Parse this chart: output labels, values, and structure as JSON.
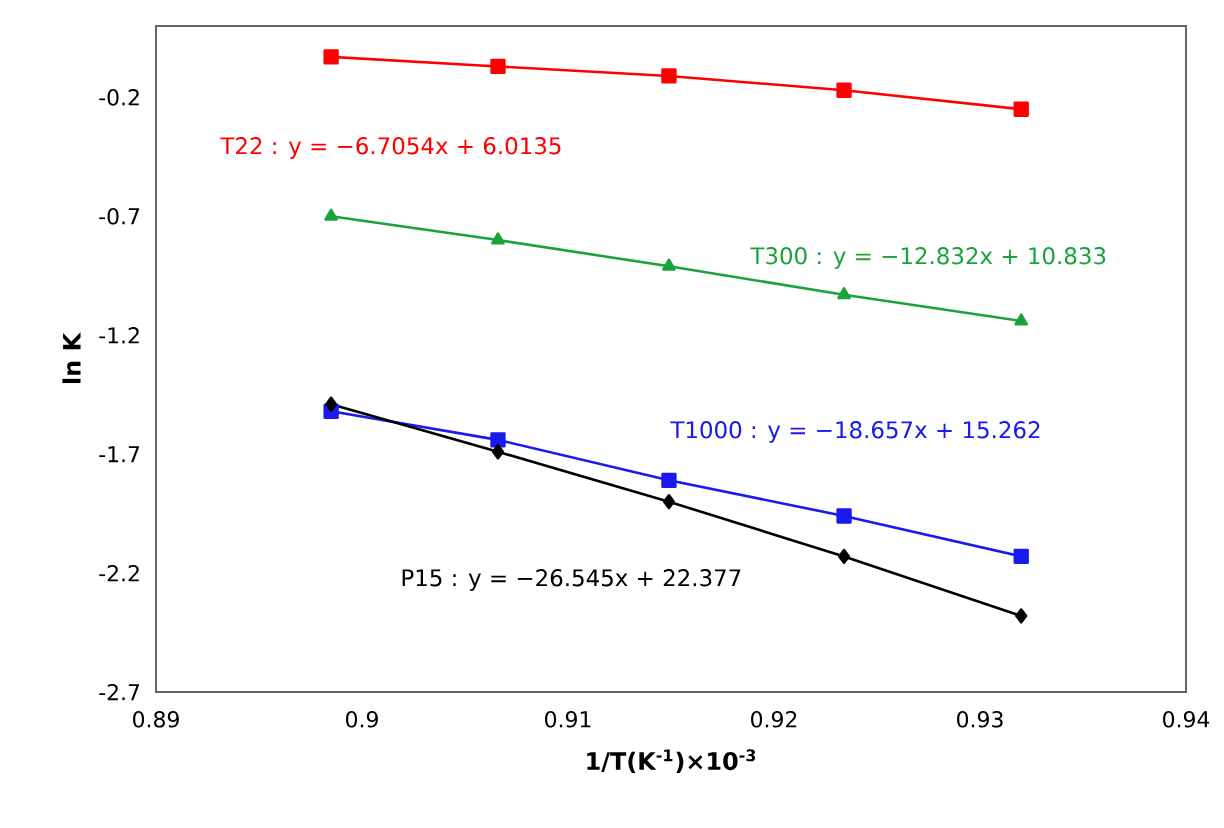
{
  "chart_data": {
    "type": "line",
    "xlabel": "1/T(K$^{-1}$)×10$^{-3}$",
    "ylabel": "ln K",
    "x": [
      0.8985,
      0.9066,
      0.9149,
      0.9234,
      0.932
    ],
    "xlim": [
      0.89,
      0.94
    ],
    "xticks": [
      0.89,
      0.9,
      0.91,
      0.92,
      0.93,
      0.94
    ],
    "ylim": [
      -2.7,
      0.1
    ],
    "yticks": [
      -2.7,
      -2.2,
      -1.7,
      -1.2,
      -0.7,
      -0.2
    ],
    "grid": false,
    "series": [
      {
        "color": "#ff0000",
        "marker": "square",
        "values": [
          -0.03,
          -0.07,
          -0.11,
          -0.17,
          -0.25
        ]
      },
      {
        "color": "#1aa33a",
        "marker": "triangle",
        "values": [
          -0.7,
          -0.8,
          -0.91,
          -1.03,
          -1.14
        ]
      },
      {
        "color": "#1a1aee",
        "marker": "square",
        "values": [
          -1.52,
          -1.64,
          -1.81,
          -1.96,
          -2.13
        ]
      },
      {
        "color": "#000000",
        "marker": "diamond",
        "values": [
          -1.49,
          -1.69,
          -1.9,
          -2.13,
          -2.38
        ]
      }
    ],
    "annotations": [
      "T22 : y = −6.7054x + 6.0135",
      "T300 : y = −12.832x + 10.833",
      "T1000 : y = −18.657x + 15.262",
      "P15 : y = −26.545x + 22.377"
    ]
  }
}
